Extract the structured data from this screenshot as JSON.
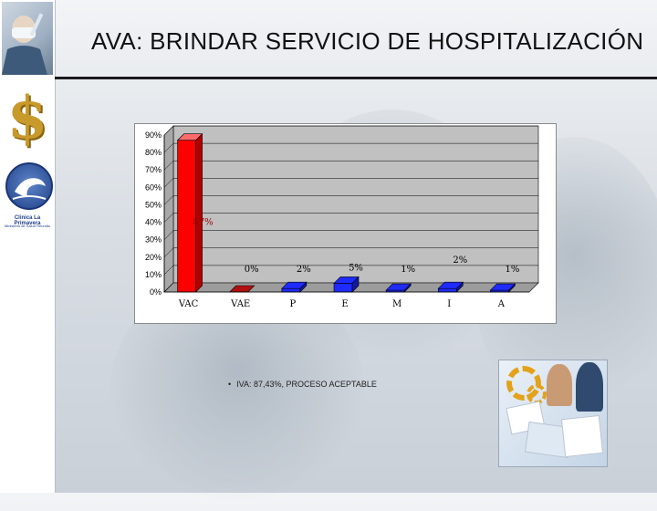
{
  "title": "AVA: BRINDAR SERVICIO DE HOSPITALIZACIÓN",
  "sidebar": {
    "logo_name": "Clinica La Primavera",
    "logo_sub": "Ministerio de Salud Reunião"
  },
  "bullet_text": "IVA: 87,43%, PROCESO ACEPTABLE",
  "colors": {
    "wall": "#c0c0c0",
    "floor": "#9c9c9c",
    "red_bar": "#ff0000",
    "red_bar_side": "#b30000",
    "red_bar_top": "#ff6b6b",
    "blue_bar": "#1f2aff",
    "blue_bar_side": "#121a9e",
    "dark_red_bar": "#b01010",
    "label_color": "#a00000"
  },
  "chart_data": {
    "type": "bar",
    "title": "",
    "xlabel": "",
    "ylabel": "",
    "ylim": [
      0,
      90
    ],
    "yticks": [
      0,
      10,
      20,
      30,
      40,
      50,
      60,
      70,
      80,
      90
    ],
    "ytick_labels": [
      "0%",
      "10%",
      "20%",
      "30%",
      "40%",
      "50%",
      "60%",
      "70%",
      "80%",
      "90%"
    ],
    "categories": [
      "VAC",
      "VAE",
      "P",
      "E",
      "M",
      "I",
      "A"
    ],
    "values": [
      87,
      0,
      2,
      5,
      1,
      2,
      1
    ],
    "data_labels": [
      "87%",
      "0%",
      "2%",
      "5%",
      "1%",
      "2%",
      "1%"
    ],
    "bar_colors": [
      "#ff0000",
      "#b01010",
      "#1f2aff",
      "#1f2aff",
      "#1f2aff",
      "#1f2aff",
      "#1f2aff"
    ],
    "grid": true,
    "legend": "none"
  }
}
